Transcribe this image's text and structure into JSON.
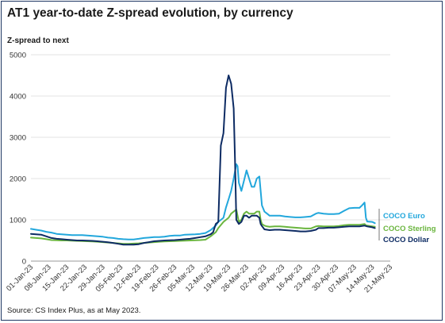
{
  "title": "AT1 year-to-date Z-spread evolution, by currency",
  "source": "Source: CS Index Plus, as at May 2023.",
  "chart_data": {
    "type": "line",
    "ylabel": "Z-spread to next",
    "xlabel": "",
    "ylim": [
      0,
      5000
    ],
    "yticks": [
      0,
      1000,
      2000,
      3000,
      4000,
      5000
    ],
    "xticks": [
      "01-Jan-23",
      "08-Jan-23",
      "15-Jan-23",
      "22-Jan-23",
      "29-Jan-23",
      "05-Feb-23",
      "12-Feb-23",
      "19-Feb-23",
      "26-Feb-23",
      "05-Mar-23",
      "12-Mar-23",
      "19-Mar-23",
      "26-Mar-23",
      "02-Apr-23",
      "09-Apr-23",
      "16-Apr-23",
      "23-Apr-23",
      "30-Apr-23",
      "07-May-23",
      "14-May-23",
      "21-May-23"
    ],
    "grid": "horizontal",
    "legend_placement": "right",
    "series": [
      {
        "name": "COCO Euro",
        "color": "#22a7dc",
        "points": [
          [
            0,
            780
          ],
          [
            2,
            760
          ],
          [
            4,
            740
          ],
          [
            6,
            710
          ],
          [
            8,
            690
          ],
          [
            10,
            660
          ],
          [
            12,
            650
          ],
          [
            14,
            640
          ],
          [
            16,
            630
          ],
          [
            18,
            630
          ],
          [
            20,
            630
          ],
          [
            22,
            620
          ],
          [
            24,
            610
          ],
          [
            26,
            600
          ],
          [
            28,
            590
          ],
          [
            30,
            570
          ],
          [
            32,
            560
          ],
          [
            34,
            540
          ],
          [
            36,
            530
          ],
          [
            38,
            525
          ],
          [
            40,
            525
          ],
          [
            42,
            540
          ],
          [
            44,
            560
          ],
          [
            46,
            570
          ],
          [
            48,
            580
          ],
          [
            50,
            580
          ],
          [
            52,
            590
          ],
          [
            54,
            610
          ],
          [
            56,
            620
          ],
          [
            58,
            620
          ],
          [
            60,
            640
          ],
          [
            62,
            645
          ],
          [
            64,
            650
          ],
          [
            66,
            660
          ],
          [
            68,
            680
          ],
          [
            70,
            750
          ],
          [
            72,
            860
          ],
          [
            73,
            950
          ],
          [
            75,
            1050
          ],
          [
            76,
            1300
          ],
          [
            77,
            1500
          ],
          [
            78,
            1700
          ],
          [
            79,
            2000
          ],
          [
            80,
            2350
          ],
          [
            80.5,
            2300
          ],
          [
            81,
            1900
          ],
          [
            82,
            1700
          ],
          [
            83,
            1950
          ],
          [
            84,
            2200
          ],
          [
            85,
            2000
          ],
          [
            86,
            1800
          ],
          [
            87,
            1800
          ],
          [
            88,
            2000
          ],
          [
            89,
            2050
          ],
          [
            89.5,
            1700
          ],
          [
            90,
            1350
          ],
          [
            91,
            1200
          ],
          [
            92,
            1150
          ],
          [
            93,
            1100
          ],
          [
            95,
            1100
          ],
          [
            97,
            1100
          ],
          [
            99,
            1080
          ],
          [
            101,
            1070
          ],
          [
            103,
            1060
          ],
          [
            105,
            1060
          ],
          [
            107,
            1070
          ],
          [
            109,
            1080
          ],
          [
            111,
            1150
          ],
          [
            112,
            1170
          ],
          [
            114,
            1150
          ],
          [
            116,
            1140
          ],
          [
            118,
            1140
          ],
          [
            120,
            1150
          ],
          [
            122,
            1220
          ],
          [
            124,
            1280
          ],
          [
            126,
            1290
          ],
          [
            128,
            1290
          ],
          [
            129,
            1350
          ],
          [
            130,
            1420
          ],
          [
            130.5,
            1050
          ],
          [
            131,
            960
          ],
          [
            133,
            950
          ],
          [
            134,
            920
          ]
        ]
      },
      {
        "name": "COCO Sterling",
        "color": "#6ab53e",
        "points": [
          [
            0,
            570
          ],
          [
            2,
            560
          ],
          [
            4,
            550
          ],
          [
            6,
            530
          ],
          [
            8,
            510
          ],
          [
            10,
            505
          ],
          [
            12,
            500
          ],
          [
            14,
            500
          ],
          [
            16,
            495
          ],
          [
            18,
            490
          ],
          [
            20,
            485
          ],
          [
            22,
            480
          ],
          [
            24,
            475
          ],
          [
            26,
            470
          ],
          [
            28,
            460
          ],
          [
            30,
            450
          ],
          [
            32,
            440
          ],
          [
            34,
            430
          ],
          [
            36,
            420
          ],
          [
            38,
            420
          ],
          [
            40,
            425
          ],
          [
            42,
            430
          ],
          [
            44,
            440
          ],
          [
            46,
            450
          ],
          [
            48,
            460
          ],
          [
            50,
            470
          ],
          [
            52,
            475
          ],
          [
            54,
            480
          ],
          [
            56,
            485
          ],
          [
            58,
            490
          ],
          [
            60,
            495
          ],
          [
            62,
            500
          ],
          [
            64,
            505
          ],
          [
            66,
            510
          ],
          [
            68,
            520
          ],
          [
            70,
            600
          ],
          [
            72,
            700
          ],
          [
            73,
            800
          ],
          [
            75,
            950
          ],
          [
            76,
            1000
          ],
          [
            77,
            1050
          ],
          [
            78,
            1150
          ],
          [
            79,
            1200
          ],
          [
            80,
            1250
          ],
          [
            80.5,
            1100
          ],
          [
            81,
            950
          ],
          [
            82,
            1000
          ],
          [
            83,
            1150
          ],
          [
            84,
            1200
          ],
          [
            85,
            1150
          ],
          [
            86,
            1150
          ],
          [
            87,
            1150
          ],
          [
            88,
            1200
          ],
          [
            89,
            1200
          ],
          [
            89.5,
            1000
          ],
          [
            90,
            900
          ],
          [
            91,
            860
          ],
          [
            92,
            840
          ],
          [
            93,
            830
          ],
          [
            95,
            840
          ],
          [
            97,
            840
          ],
          [
            99,
            830
          ],
          [
            101,
            820
          ],
          [
            103,
            810
          ],
          [
            105,
            800
          ],
          [
            107,
            790
          ],
          [
            109,
            790
          ],
          [
            111,
            840
          ],
          [
            112,
            850
          ],
          [
            114,
            840
          ],
          [
            116,
            840
          ],
          [
            118,
            840
          ],
          [
            120,
            850
          ],
          [
            122,
            870
          ],
          [
            124,
            880
          ],
          [
            126,
            880
          ],
          [
            128,
            880
          ],
          [
            129,
            890
          ],
          [
            130,
            900
          ],
          [
            130.5,
            870
          ],
          [
            131,
            860
          ],
          [
            133,
            840
          ],
          [
            134,
            830
          ]
        ]
      },
      {
        "name": "COCO Dollar",
        "color": "#0d2b63",
        "points": [
          [
            0,
            660
          ],
          [
            2,
            650
          ],
          [
            4,
            640
          ],
          [
            6,
            600
          ],
          [
            8,
            560
          ],
          [
            10,
            540
          ],
          [
            12,
            530
          ],
          [
            14,
            520
          ],
          [
            16,
            510
          ],
          [
            18,
            500
          ],
          [
            20,
            500
          ],
          [
            22,
            495
          ],
          [
            24,
            490
          ],
          [
            26,
            480
          ],
          [
            28,
            470
          ],
          [
            30,
            455
          ],
          [
            32,
            440
          ],
          [
            34,
            420
          ],
          [
            36,
            400
          ],
          [
            38,
            400
          ],
          [
            40,
            400
          ],
          [
            42,
            410
          ],
          [
            44,
            440
          ],
          [
            46,
            460
          ],
          [
            48,
            480
          ],
          [
            50,
            490
          ],
          [
            52,
            500
          ],
          [
            54,
            505
          ],
          [
            56,
            510
          ],
          [
            58,
            520
          ],
          [
            60,
            530
          ],
          [
            62,
            540
          ],
          [
            64,
            560
          ],
          [
            66,
            580
          ],
          [
            68,
            600
          ],
          [
            70,
            650
          ],
          [
            71,
            700
          ],
          [
            72,
            900
          ],
          [
            73,
            950
          ],
          [
            74,
            2800
          ],
          [
            75,
            3100
          ],
          [
            76,
            4200
          ],
          [
            77,
            4500
          ],
          [
            78,
            4300
          ],
          [
            79,
            3700
          ],
          [
            79.5,
            2500
          ],
          [
            80,
            1000
          ],
          [
            81,
            900
          ],
          [
            82,
            950
          ],
          [
            83,
            1100
          ],
          [
            84,
            1100
          ],
          [
            85,
            1050
          ],
          [
            86,
            1100
          ],
          [
            87,
            1100
          ],
          [
            88,
            1100
          ],
          [
            89,
            1050
          ],
          [
            89.5,
            900
          ],
          [
            90,
            850
          ],
          [
            91,
            770
          ],
          [
            92,
            760
          ],
          [
            93,
            750
          ],
          [
            95,
            760
          ],
          [
            97,
            760
          ],
          [
            99,
            750
          ],
          [
            101,
            740
          ],
          [
            103,
            730
          ],
          [
            105,
            720
          ],
          [
            107,
            720
          ],
          [
            109,
            730
          ],
          [
            111,
            760
          ],
          [
            112,
            800
          ],
          [
            114,
            800
          ],
          [
            116,
            810
          ],
          [
            118,
            810
          ],
          [
            120,
            820
          ],
          [
            122,
            830
          ],
          [
            124,
            840
          ],
          [
            126,
            840
          ],
          [
            128,
            840
          ],
          [
            129,
            850
          ],
          [
            130,
            860
          ],
          [
            130.5,
            850
          ],
          [
            131,
            840
          ],
          [
            133,
            820
          ],
          [
            134,
            800
          ]
        ]
      }
    ]
  }
}
